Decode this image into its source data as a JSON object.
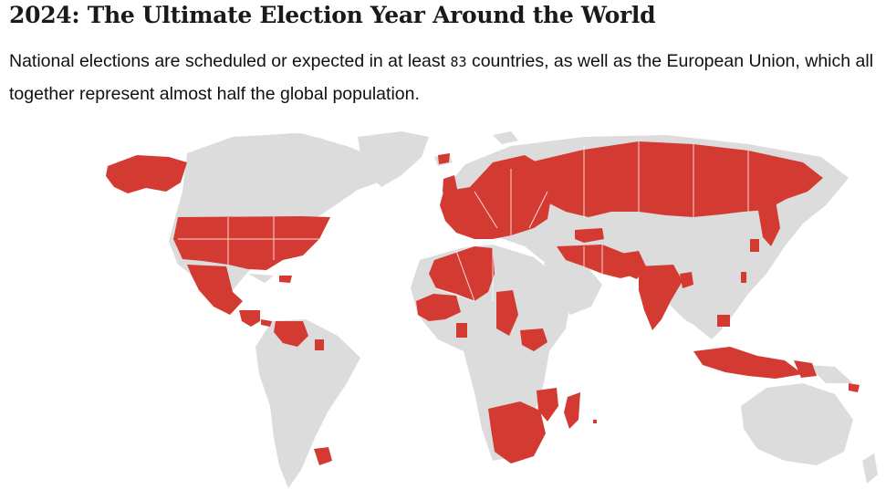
{
  "header": {
    "title": "2024: The Ultimate Election Year Around the World",
    "subtitle_part1": "National elections are scheduled or expected in at least ",
    "country_count": "83",
    "subtitle_part2": " countries, as well as the European Union, which all together represent almost half the global population."
  },
  "map": {
    "land_color": "#dcdcdc",
    "highlight_color": "#d33a32",
    "background_color": "#ffffff"
  }
}
